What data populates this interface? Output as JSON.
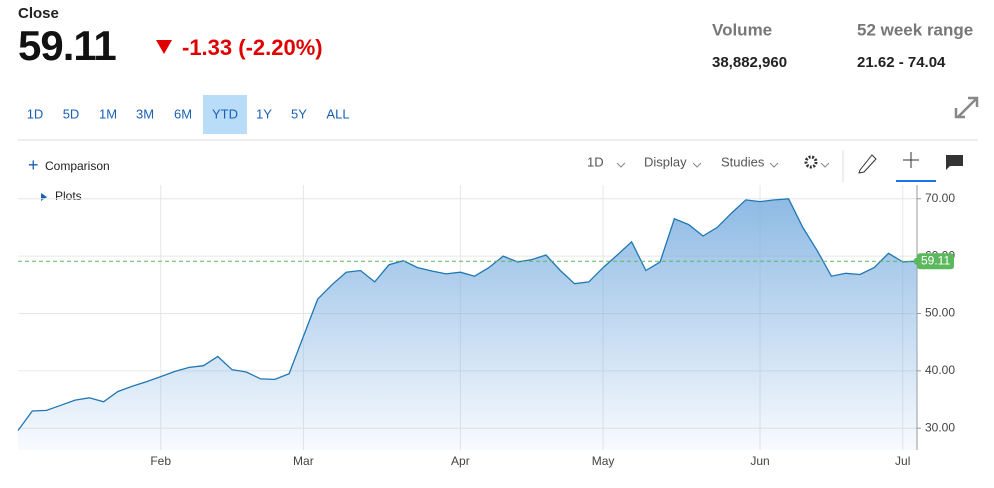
{
  "header": {
    "label": "Close",
    "price": "59.11",
    "change": "-1.33 (-2.20%)",
    "stats": [
      {
        "label": "Volume",
        "value": "38,882,960"
      },
      {
        "label": "52 week range",
        "value": "21.62 - 74.04"
      }
    ]
  },
  "ranges": [
    "1D",
    "5D",
    "1M",
    "3M",
    "6M",
    "YTD",
    "1Y",
    "5Y",
    "ALL"
  ],
  "selected_range_index": 5,
  "toolbar": {
    "comparison": "Comparison",
    "interval": "1D",
    "display": "Display",
    "studies": "Studies",
    "plots": "Plots"
  },
  "chart_data": {
    "type": "line",
    "color": "#1f77b4",
    "categories": [
      null,
      null,
      null,
      null,
      null,
      null,
      null,
      null,
      null,
      null,
      "Feb",
      null,
      null,
      null,
      null,
      null,
      null,
      null,
      null,
      null,
      "Mar",
      null,
      null,
      null,
      null,
      null,
      null,
      null,
      null,
      null,
      null,
      "Apr",
      null,
      null,
      null,
      null,
      null,
      null,
      null,
      null,
      null,
      "May",
      null,
      null,
      null,
      null,
      null,
      null,
      null,
      null,
      null,
      null,
      "Jun",
      null,
      null,
      null,
      null,
      null,
      null,
      null,
      null,
      null,
      "Jul",
      null
    ],
    "values": [
      29.6,
      33.0,
      33.1,
      34.0,
      34.9,
      35.3,
      34.6,
      36.4,
      37.3,
      38.1,
      39.0,
      39.9,
      40.6,
      40.9,
      42.5,
      40.2,
      39.8,
      38.6,
      38.5,
      39.5,
      46.0,
      52.5,
      55.0,
      57.2,
      57.5,
      55.5,
      58.5,
      59.2,
      58.0,
      57.4,
      56.9,
      57.2,
      56.5,
      58.0,
      60.0,
      59.0,
      59.4,
      60.2,
      57.5,
      55.2,
      55.5,
      58.0,
      60.2,
      62.5,
      57.5,
      59.0,
      66.5,
      65.5,
      63.5,
      65.0,
      67.5,
      69.8,
      69.5,
      69.8,
      70.0,
      65.0,
      61.0,
      56.5,
      57.0,
      56.8,
      58.0,
      60.5,
      59.0,
      59.11
    ],
    "ylim": [
      26.2,
      72.4
    ],
    "yticks": [
      {
        "value": 30,
        "label": "30.00"
      },
      {
        "value": 40,
        "label": "40.00"
      },
      {
        "value": 50,
        "label": "50.00"
      },
      {
        "value": 60,
        "label": "60.00"
      },
      {
        "value": 70,
        "label": "70.00"
      }
    ],
    "grid": true
  }
}
